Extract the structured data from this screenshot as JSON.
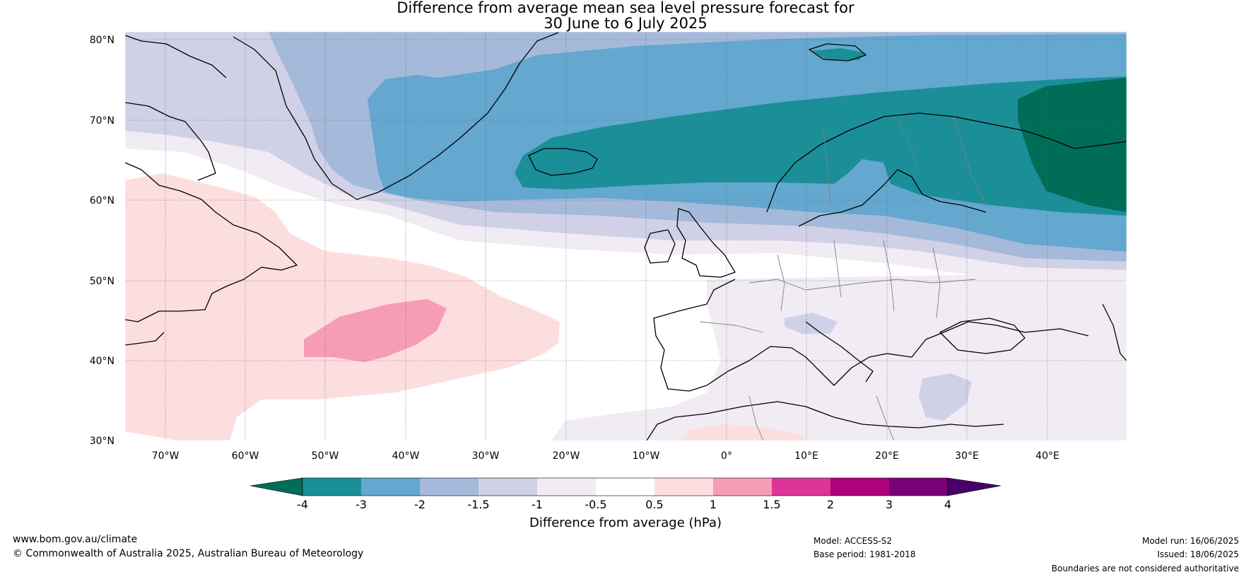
{
  "title": {
    "line1": "Difference from average mean sea level pressure forecast for",
    "line2": "30 June to 6 July 2025"
  },
  "map": {
    "extent": {
      "lon": [
        -75,
        50
      ],
      "lat": [
        30,
        81
      ]
    },
    "lat_labels": [
      "30°N",
      "40°N",
      "50°N",
      "60°N",
      "70°N",
      "80°N"
    ],
    "lon_labels": [
      "70°W",
      "60°W",
      "50°W",
      "40°W",
      "30°W",
      "20°W",
      "10°W",
      "0°",
      "10°E",
      "20°E",
      "30°E",
      "40°E"
    ],
    "colors": {
      "lt_m4": "#006d56",
      "m4_m3": "#1a8f98",
      "m3_m2": "#64a7cf",
      "m2_m15": "#a5b9da",
      "m15_m1": "#d0d1e6",
      "m1_m05": "#f1ebf4",
      "m05_05": "#ffffff",
      "p05_1": "#fddedf",
      "p1_15": "#f79cb7",
      "p15_2": "#dd3497",
      "p2_3": "#ae017e",
      "p3_4": "#7a0177",
      "gt_4": "#49006a"
    }
  },
  "colorbar": {
    "ticks": [
      "-4",
      "-3",
      "-2",
      "-1.5",
      "-1",
      "-0.5",
      "0.5",
      "1",
      "1.5",
      "2",
      "3",
      "4"
    ],
    "label": "Difference from average (hPa)"
  },
  "footer": {
    "website": "www.bom.gov.au/climate",
    "copyright": "© Commonwealth of Australia 2025, Australian Bureau of Meteorology",
    "model": "Model: ACCESS-S2",
    "base_period": "Base period: 1981-2018",
    "model_run": "Model run: 16/06/2025",
    "issued": "Issued: 18/06/2025",
    "disclaimer": "Boundaries are not considered authoritative"
  }
}
